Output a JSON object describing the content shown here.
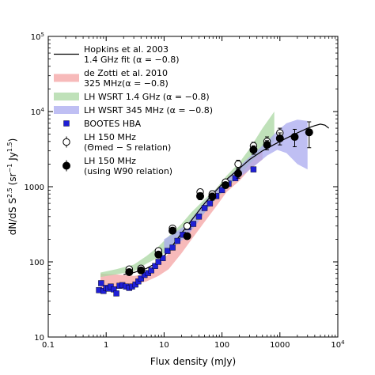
{
  "chart_data": {
    "type": "scatter",
    "xlabel": "Flux density (mJy)",
    "ylabel": "dN/dS S",
    "ylabel_sup": "2.5",
    "ylabel_unit": "(sr",
    "ylabel_unit_sup1": "−1",
    "ylabel_unit_mid": " Jy",
    "ylabel_unit_sup2": "1.5",
    "ylabel_unit_close": ")",
    "x_scale": "log",
    "y_scale": "log",
    "xlim": [
      0.1,
      10000
    ],
    "ylim": [
      10,
      100000
    ],
    "x_ticks": [
      {
        "value": 0.1,
        "label": "0.1"
      },
      {
        "value": 1,
        "label": "1"
      },
      {
        "value": 10,
        "label": "10"
      },
      {
        "value": 100,
        "label": "100"
      },
      {
        "value": 1000,
        "label": "1000"
      },
      {
        "value": 10000,
        "label": "10",
        "sup": "4"
      }
    ],
    "y_ticks": [
      {
        "value": 10,
        "label": "10"
      },
      {
        "value": 100,
        "label": "100"
      },
      {
        "value": 1000,
        "label": "1000"
      },
      {
        "value": 10000,
        "label": "10",
        "sup": "4"
      },
      {
        "value": 100000,
        "label": "10",
        "sup": "5"
      }
    ],
    "legend_placement": "upper-left",
    "legend": [
      {
        "key": "hopkins",
        "lines": [
          "Hopkins et al. 2003",
          "1.4 GHz fit (α = −0.8)"
        ]
      },
      {
        "key": "dezotti",
        "lines": [
          "de Zotti et al. 2010",
          "325 MHz(α = −0.8)"
        ]
      },
      {
        "key": "wsrt14",
        "lines": [
          "LH WSRT 1.4 GHz (α = −0.8)"
        ]
      },
      {
        "key": "wsrt345",
        "lines": [
          "LH WSRT 345 MHz (α = −0.8)"
        ]
      },
      {
        "key": "bootes",
        "lines": [
          "BOOTES HBA"
        ]
      },
      {
        "key": "lh150open",
        "lines": [
          "LH 150 MHz",
          "(Θmed − S relation)"
        ]
      },
      {
        "key": "lh150filled",
        "lines": [
          "LH 150 MHz",
          "(using W90 relation)"
        ]
      }
    ],
    "series": [
      {
        "key": "hopkins",
        "style": "line",
        "color": "#000000",
        "x": [
          2,
          3,
          5,
          8,
          12,
          20,
          30,
          50,
          80,
          120,
          200,
          300,
          500,
          800,
          1200,
          2000,
          3000,
          4000,
          5000,
          6000,
          7000
        ],
        "y": [
          68,
          72,
          82,
          100,
          140,
          240,
          360,
          600,
          900,
          1250,
          1750,
          2300,
          3000,
          3650,
          4300,
          5200,
          6000,
          6500,
          6800,
          6600,
          6000
        ]
      },
      {
        "key": "dezotti",
        "style": "band",
        "color": "#f4a3a3",
        "x": [
          0.8,
          1.5,
          3,
          5,
          8,
          12,
          20,
          30,
          50,
          80,
          120,
          200,
          300,
          500
        ],
        "y_low": [
          45,
          45,
          50,
          55,
          65,
          80,
          130,
          200,
          340,
          550,
          850,
          1200,
          1700,
          2300
        ],
        "y_high": [
          70,
          68,
          65,
          68,
          90,
          130,
          220,
          350,
          600,
          950,
          1300,
          1800,
          2500,
          3100
        ]
      },
      {
        "key": "wsrt14",
        "style": "band",
        "color": "#a9d7a1",
        "x": [
          0.8,
          1.5,
          3,
          5,
          8,
          12,
          20,
          30,
          50,
          80,
          120,
          200,
          300,
          500,
          800
        ],
        "y_low": [
          63,
          68,
          75,
          95,
          115,
          145,
          200,
          300,
          450,
          700,
          950,
          1400,
          2000,
          3000,
          4000
        ],
        "y_high": [
          72,
          80,
          92,
          120,
          160,
          220,
          320,
          460,
          680,
          950,
          1400,
          2100,
          3200,
          6000,
          10000
        ]
      },
      {
        "key": "wsrt345",
        "style": "band",
        "color": "#a9a9ef",
        "x": [
          10,
          15,
          25,
          40,
          60,
          100,
          150,
          250,
          400,
          600,
          900,
          1300,
          2000,
          3000
        ],
        "y_low": [
          130,
          160,
          220,
          350,
          550,
          850,
          1150,
          1500,
          2000,
          2600,
          3100,
          2800,
          2000,
          1700
        ],
        "y_high": [
          200,
          240,
          320,
          500,
          750,
          1100,
          1500,
          2200,
          3000,
          4000,
          5500,
          7000,
          7800,
          7500
        ]
      },
      {
        "key": "bootes",
        "style": "square",
        "color": "#1f1fd6",
        "points": [
          [
            0.75,
            42
          ],
          [
            0.82,
            52
          ],
          [
            0.9,
            41
          ],
          [
            1.0,
            45
          ],
          [
            1.1,
            44
          ],
          [
            1.2,
            47
          ],
          [
            1.35,
            43
          ],
          [
            1.5,
            38
          ],
          [
            1.7,
            48
          ],
          [
            1.9,
            49
          ],
          [
            2.2,
            47
          ],
          [
            2.5,
            45
          ],
          [
            2.8,
            47
          ],
          [
            3.2,
            50
          ],
          [
            3.6,
            55
          ],
          [
            4.0,
            60
          ],
          [
            4.6,
            67
          ],
          [
            5.3,
            71
          ],
          [
            6.0,
            77
          ],
          [
            7.0,
            88
          ],
          [
            8.0,
            100
          ],
          [
            9.5,
            112
          ],
          [
            11.5,
            140
          ],
          [
            14,
            155
          ],
          [
            17,
            190
          ],
          [
            21,
            230
          ],
          [
            26,
            290
          ],
          [
            32,
            320
          ],
          [
            40,
            400
          ],
          [
            50,
            520
          ],
          [
            62,
            600
          ],
          [
            80,
            750
          ],
          [
            100,
            900
          ],
          [
            130,
            1100
          ],
          [
            170,
            1300
          ],
          [
            350,
            1700
          ]
        ]
      },
      {
        "key": "lh150open",
        "style": "open-circle",
        "color": "#000000",
        "points": [
          [
            2.5,
            80
          ],
          [
            4,
            82
          ],
          [
            8,
            140
          ],
          [
            14,
            280
          ],
          [
            25,
            300
          ],
          [
            42,
            850
          ],
          [
            68,
            800
          ],
          [
            115,
            1150
          ],
          [
            190,
            2000
          ],
          [
            350,
            3500
          ],
          [
            600,
            4000
          ],
          [
            1000,
            5200
          ]
        ],
        "err": [
          5,
          6,
          10,
          20,
          20,
          80,
          80,
          100,
          250,
          400,
          600,
          800
        ]
      },
      {
        "key": "lh150filled",
        "style": "filled-circle",
        "color": "#000000",
        "points": [
          [
            2.5,
            73
          ],
          [
            4,
            77
          ],
          [
            8,
            125
          ],
          [
            14,
            260
          ],
          [
            25,
            220
          ],
          [
            42,
            750
          ],
          [
            68,
            740
          ],
          [
            115,
            1050
          ],
          [
            190,
            1500
          ],
          [
            350,
            3100
          ],
          [
            600,
            3600
          ],
          [
            1000,
            4400
          ],
          [
            1800,
            4600
          ],
          [
            3200,
            5300
          ]
        ],
        "err": [
          5,
          6,
          10,
          20,
          20,
          80,
          80,
          100,
          200,
          400,
          500,
          800,
          1200,
          2000
        ]
      }
    ]
  }
}
